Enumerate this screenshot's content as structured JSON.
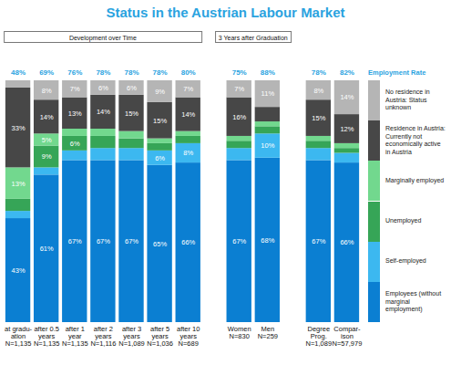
{
  "chart_data": {
    "type": "bar",
    "title": "Status in the Austrian Labour Market",
    "stacked": true,
    "data_labels": true,
    "tick_labels": "x",
    "legend": "right",
    "ylim": [
      0,
      100
    ],
    "categories": [
      "at gradu-\nation\nN=1,135",
      "after 0.5\nyears\nN=1,135",
      "after 1\nyear\nN=1,135",
      "after 2\nyears\nN=1,116",
      "after 3\nyears\nN=1,089",
      "after 5\nyears\nN=1,036",
      "after 10\nyears\nN=689",
      "Women\nN=830",
      "Men\nN=259",
      "Degree\nProg.\nN=1,089",
      "Compar-\nison\nN=57,979"
    ],
    "groups": [
      "Development over Time",
      "Development over Time",
      "Development over Time",
      "Development over Time",
      "Development over Time",
      "Development over Time",
      "Development over Time",
      "3 Years after Graduation",
      "3 Years after Graduation",
      null,
      null
    ],
    "employment_rate": {
      "label": "Employment Rate",
      "values": [
        48,
        69,
        76,
        78,
        78,
        78,
        80,
        75,
        88,
        78,
        82
      ],
      "value_labels": [
        "48%",
        "69%",
        "76%",
        "78%",
        "78%",
        "78%",
        "80%",
        "75%",
        "88%",
        "78%",
        "82%"
      ]
    },
    "series": [
      {
        "name": "Employees (without marginal employment)",
        "color": "#0b7fd2",
        "values": [
          43,
          61,
          67,
          67,
          67,
          65,
          66,
          67,
          68,
          67,
          66
        ],
        "value_labels": [
          "43%",
          "61%",
          "67%",
          "67%",
          "67%",
          "65%",
          "66%",
          "67%",
          "68%",
          "67%",
          "66%"
        ]
      },
      {
        "name": "Self-employed",
        "color": "#3cb8f0",
        "values": [
          3,
          3,
          4,
          5,
          5,
          6,
          8,
          5,
          10,
          5,
          4
        ],
        "value_labels": [
          null,
          null,
          null,
          null,
          null,
          "6%",
          "8%",
          null,
          "10%",
          null,
          null
        ]
      },
      {
        "name": "Unemployed",
        "color": "#36a557",
        "values": [
          5,
          9,
          6,
          5,
          4,
          3,
          3,
          3,
          3,
          3,
          2
        ],
        "value_labels": [
          null,
          "9%",
          "6%",
          null,
          null,
          null,
          null,
          null,
          null,
          null,
          null
        ]
      },
      {
        "name": "Marginally employed",
        "color": "#72d88e",
        "values": [
          13,
          5,
          3,
          3,
          3,
          2,
          2,
          2,
          2,
          2,
          2
        ],
        "value_labels": [
          "13%",
          "5%",
          null,
          null,
          null,
          null,
          null,
          null,
          null,
          null,
          null
        ]
      },
      {
        "name": "Residence in Austria: Currently not economically active in Austria",
        "color": "#474747",
        "values": [
          33,
          14,
          13,
          14,
          15,
          15,
          14,
          16,
          6,
          15,
          12
        ],
        "value_labels": [
          "33%",
          "14%",
          "13%",
          "14%",
          "15%",
          "15%",
          "14%",
          "16%",
          null,
          "15%",
          "12%"
        ]
      },
      {
        "name": "No residence in Austria: Status unknown",
        "color": "#b5b5b5",
        "values": [
          3,
          8,
          7,
          6,
          6,
          9,
          7,
          7,
          11,
          8,
          14
        ],
        "value_labels": [
          null,
          "8%",
          "7%",
          "6%",
          "6%",
          "9%",
          "7%",
          "7%",
          "11%",
          "8%",
          "14%"
        ]
      }
    ]
  }
}
